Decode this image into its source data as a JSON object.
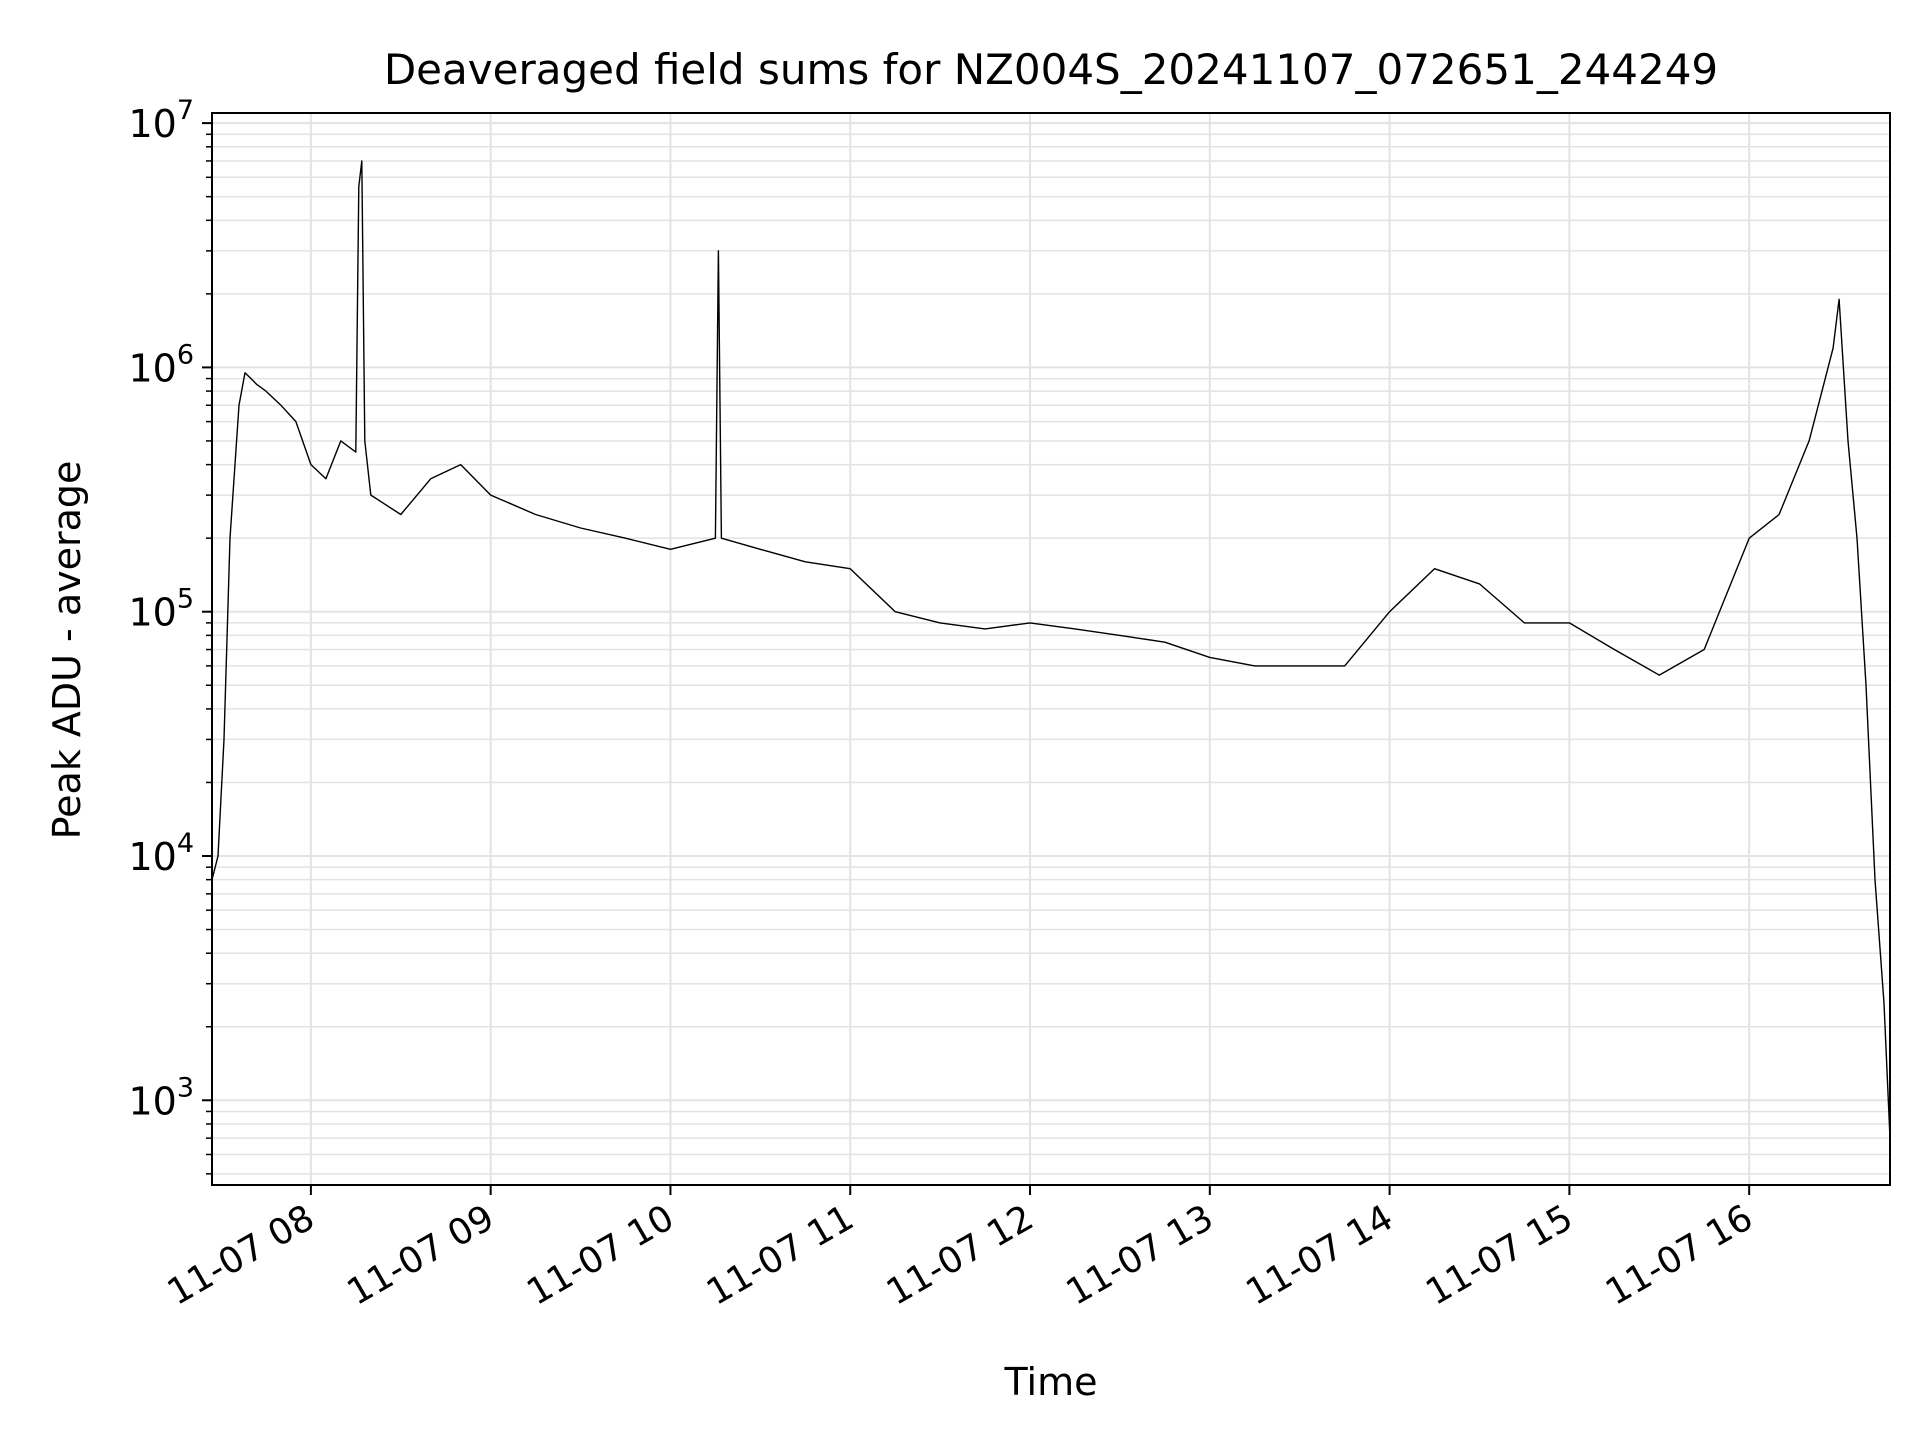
{
  "chart_data": {
    "type": "line",
    "title": "Deaveraged field sums for NZ004S_20241107_072651_244249",
    "xlabel": "Time",
    "ylabel": "Peak ADU - average",
    "yscale": "log",
    "grid": true,
    "xlim": [
      "2024-11-07 07:27",
      "2024-11-07 16:47"
    ],
    "ylim": [
      450,
      11000000
    ],
    "xticks": [
      "11-07 08",
      "11-07 09",
      "11-07 10",
      "11-07 11",
      "11-07 12",
      "11-07 13",
      "11-07 14",
      "11-07 15",
      "11-07 16"
    ],
    "xtick_times": [
      "2024-11-07 08:00",
      "2024-11-07 09:00",
      "2024-11-07 10:00",
      "2024-11-07 11:00",
      "2024-11-07 12:00",
      "2024-11-07 13:00",
      "2024-11-07 14:00",
      "2024-11-07 15:00",
      "2024-11-07 16:00"
    ],
    "yticks": [
      {
        "base": "10",
        "exp": "3",
        "value": 1000
      },
      {
        "base": "10",
        "exp": "4",
        "value": 10000
      },
      {
        "base": "10",
        "exp": "5",
        "value": 100000
      },
      {
        "base": "10",
        "exp": "6",
        "value": 1000000
      },
      {
        "base": "10",
        "exp": "7",
        "value": 10000000
      }
    ],
    "series": [
      {
        "color": "#000000",
        "x": [
          "2024-11-07 07:27",
          "2024-11-07 07:29",
          "2024-11-07 07:31",
          "2024-11-07 07:33",
          "2024-11-07 07:36",
          "2024-11-07 07:38",
          "2024-11-07 07:40",
          "2024-11-07 07:42",
          "2024-11-07 07:45",
          "2024-11-07 07:50",
          "2024-11-07 07:55",
          "2024-11-07 08:00",
          "2024-11-07 08:05",
          "2024-11-07 08:10",
          "2024-11-07 08:15",
          "2024-11-07 08:16",
          "2024-11-07 08:17",
          "2024-11-07 08:18",
          "2024-11-07 08:20",
          "2024-11-07 08:30",
          "2024-11-07 08:40",
          "2024-11-07 08:50",
          "2024-11-07 09:00",
          "2024-11-07 09:15",
          "2024-11-07 09:30",
          "2024-11-07 09:45",
          "2024-11-07 10:00",
          "2024-11-07 10:15",
          "2024-11-07 10:16",
          "2024-11-07 10:17",
          "2024-11-07 10:30",
          "2024-11-07 10:45",
          "2024-11-07 11:00",
          "2024-11-07 11:15",
          "2024-11-07 11:30",
          "2024-11-07 11:45",
          "2024-11-07 12:00",
          "2024-11-07 12:15",
          "2024-11-07 12:30",
          "2024-11-07 12:45",
          "2024-11-07 13:00",
          "2024-11-07 13:15",
          "2024-11-07 13:30",
          "2024-11-07 13:45",
          "2024-11-07 14:00",
          "2024-11-07 14:15",
          "2024-11-07 14:30",
          "2024-11-07 14:45",
          "2024-11-07 15:00",
          "2024-11-07 15:15",
          "2024-11-07 15:30",
          "2024-11-07 15:45",
          "2024-11-07 16:00",
          "2024-11-07 16:10",
          "2024-11-07 16:20",
          "2024-11-07 16:28",
          "2024-11-07 16:30",
          "2024-11-07 16:33",
          "2024-11-07 16:36",
          "2024-11-07 16:39",
          "2024-11-07 16:42",
          "2024-11-07 16:45",
          "2024-11-07 16:47"
        ],
        "y": [
          8000,
          10000,
          30000,
          200000,
          700000,
          950000,
          900000,
          850000,
          800000,
          700000,
          600000,
          400000,
          350000,
          500000,
          450000,
          5500000,
          7000000,
          500000,
          300000,
          250000,
          350000,
          400000,
          300000,
          250000,
          220000,
          200000,
          180000,
          200000,
          3000000,
          200000,
          180000,
          160000,
          150000,
          100000,
          90000,
          85000,
          90000,
          85000,
          80000,
          75000,
          65000,
          60000,
          60000,
          60000,
          100000,
          150000,
          130000,
          90000,
          90000,
          70000,
          55000,
          70000,
          200000,
          250000,
          500000,
          1200000,
          1900000,
          500000,
          200000,
          50000,
          8000,
          2500,
          700
        ]
      }
    ]
  }
}
